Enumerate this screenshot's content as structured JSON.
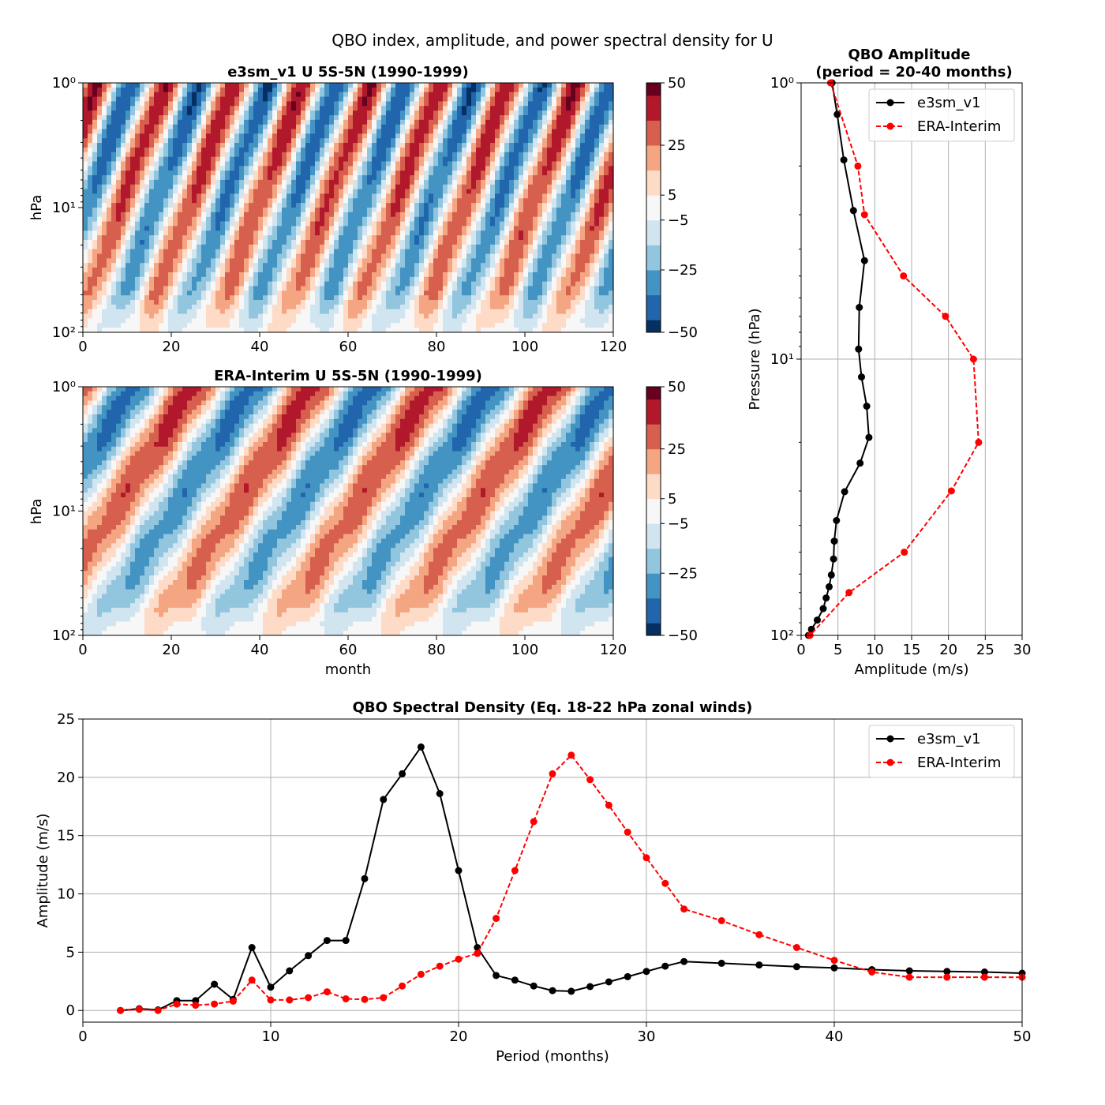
{
  "suptitle": "QBO index, amplitude, and power spectral density for U",
  "colors": {
    "model": "#000000",
    "obs": "#ff0000",
    "grid": "#b0b0b0",
    "rdbu": [
      "#053061",
      "#2166ac",
      "#4393c3",
      "#92c5de",
      "#d1e5f0",
      "#f7f7f7",
      "#fddbc7",
      "#f4a582",
      "#d6604d",
      "#b2182b",
      "#67001f"
    ]
  },
  "chart_data": [
    {
      "type": "heatmap",
      "title": "e3sm_v1 U 5S-5N (1990-1999)",
      "xlabel": "",
      "ylabel": "hPa",
      "xlim": [
        0,
        120
      ],
      "x_ticks": [
        "0",
        "20",
        "40",
        "60",
        "80",
        "100",
        "120"
      ],
      "y_scale": "log",
      "y_ticks": [
        "10⁰",
        "10¹",
        "10²"
      ],
      "colorbar": {
        "range": [
          -50,
          50
        ],
        "ticks": [
          "50",
          "25",
          "5",
          "−5",
          "−25",
          "−50"
        ]
      },
      "pattern": {
        "period_months": 15.5,
        "lower_amp_ms": 25,
        "upper_amp_ms": 45
      }
    },
    {
      "type": "heatmap",
      "title": "ERA-Interim U 5S-5N (1990-1999)",
      "xlabel": "month",
      "ylabel": "hPa",
      "xlim": [
        0,
        120
      ],
      "x_ticks": [
        "0",
        "20",
        "40",
        "60",
        "80",
        "100",
        "120"
      ],
      "y_scale": "log",
      "y_ticks": [
        "10⁰",
        "10¹",
        "10²"
      ],
      "colorbar": {
        "range": [
          -50,
          50
        ],
        "ticks": [
          "50",
          "25",
          "5",
          "−5",
          "−25",
          "−50"
        ]
      },
      "pattern": {
        "period_months": 27,
        "lower_amp_ms": 22,
        "upper_amp_ms": 40
      }
    },
    {
      "type": "line",
      "title": "QBO Amplitude\n(period = 20-40 months)",
      "title_lines": [
        "QBO Amplitude",
        "(period = 20-40 months)"
      ],
      "xlabel": "Amplitude (m/s)",
      "ylabel": "Pressure (hPa)",
      "xlim": [
        0,
        30
      ],
      "x_ticks": [
        "0",
        "5",
        "10",
        "15",
        "20",
        "25",
        "30"
      ],
      "y_scale": "log",
      "ylim": [
        1,
        100
      ],
      "y_ticks": [
        "10⁰",
        "10¹",
        "10²"
      ],
      "grid": true,
      "legend_position": "upper right",
      "series": [
        {
          "name": "e3sm_v1",
          "style": "solid",
          "amplitude": [
            4.2,
            4.9,
            5.8,
            7.1,
            8.6,
            7.9,
            7.8,
            8.2,
            8.9,
            9.2,
            8.0,
            5.9,
            4.8,
            4.5,
            4.4,
            4.1,
            3.8,
            3.4,
            3.0,
            2.2,
            1.4,
            1.0
          ],
          "pressure_hPa": [
            1,
            1.3,
            1.9,
            2.9,
            4.4,
            6.5,
            9.2,
            11.6,
            14.8,
            19.2,
            23.8,
            30.2,
            38.4,
            45.6,
            52.9,
            60.4,
            66.7,
            73.2,
            80,
            88,
            95,
            100
          ]
        },
        {
          "name": "ERA-Interim",
          "style": "dashed",
          "amplitude": [
            4.0,
            7.7,
            8.6,
            13.9,
            19.6,
            23.4,
            24.1,
            20.4,
            14.0,
            6.5,
            1.2
          ],
          "pressure_hPa": [
            1,
            2,
            3,
            5,
            7,
            10,
            20,
            30,
            50,
            70,
            100
          ]
        }
      ]
    },
    {
      "type": "line",
      "title": "QBO Spectral Density (Eq. 18-22 hPa zonal winds)",
      "xlabel": "Period (months)",
      "ylabel": "Amplitude (m/s)",
      "xlim": [
        0,
        50
      ],
      "ylim": [
        -1,
        25
      ],
      "x_ticks": [
        "0",
        "10",
        "20",
        "30",
        "40",
        "50"
      ],
      "y_ticks": [
        "0",
        "5",
        "10",
        "15",
        "20",
        "25"
      ],
      "grid": true,
      "legend_position": "upper right",
      "series": [
        {
          "name": "e3sm_v1",
          "style": "solid",
          "x": [
            2,
            3,
            4,
            5,
            6,
            7,
            8,
            9,
            10,
            11,
            12,
            13,
            14,
            15,
            16,
            17,
            18,
            19,
            20,
            21,
            22,
            23,
            24,
            25,
            26,
            27,
            28,
            29,
            30,
            31,
            32,
            34,
            36,
            38,
            40,
            42,
            44,
            46,
            48,
            50
          ],
          "y": [
            0.0,
            0.15,
            0.05,
            0.85,
            0.85,
            2.25,
            0.95,
            5.4,
            2.0,
            3.4,
            4.7,
            6.0,
            6.0,
            11.3,
            18.1,
            20.3,
            22.6,
            18.6,
            12.0,
            5.4,
            3.0,
            2.6,
            2.1,
            1.7,
            1.65,
            2.05,
            2.45,
            2.9,
            3.35,
            3.8,
            4.2,
            4.05,
            3.9,
            3.75,
            3.65,
            3.5,
            3.4,
            3.35,
            3.3,
            3.2
          ]
        },
        {
          "name": "ERA-Interim",
          "style": "dashed",
          "x": [
            2,
            3,
            4,
            5,
            6,
            7,
            8,
            9,
            10,
            11,
            12,
            13,
            14,
            15,
            16,
            17,
            18,
            19,
            20,
            21,
            22,
            23,
            24,
            25,
            26,
            27,
            28,
            29,
            30,
            31,
            32,
            34,
            36,
            38,
            40,
            42,
            44,
            46,
            48,
            50
          ],
          "y": [
            0.0,
            0.1,
            0.0,
            0.55,
            0.45,
            0.55,
            0.8,
            2.6,
            0.9,
            0.9,
            1.1,
            1.6,
            1.0,
            0.95,
            1.1,
            2.1,
            3.1,
            3.8,
            4.4,
            4.9,
            7.9,
            12.0,
            16.2,
            20.3,
            21.9,
            19.8,
            17.6,
            15.3,
            13.1,
            10.9,
            8.7,
            7.7,
            6.5,
            5.4,
            4.3,
            3.3,
            2.85,
            2.85,
            2.85,
            2.85
          ]
        }
      ]
    }
  ]
}
